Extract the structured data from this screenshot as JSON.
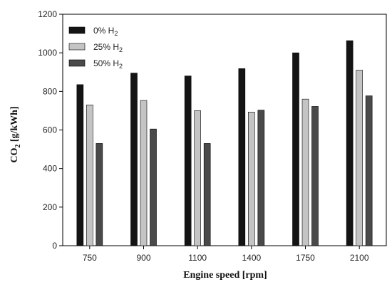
{
  "chart_data": {
    "type": "bar",
    "xlabel": "Engine speed [rpm]",
    "ylabel_main": "CO",
    "ylabel_sub": "2",
    "ylabel_unit": " [g/kWh]",
    "categories": [
      "750",
      "900",
      "1100",
      "1400",
      "1750",
      "2100"
    ],
    "ylim": [
      0,
      1200
    ],
    "yticks": [
      0,
      200,
      400,
      600,
      800,
      1000,
      1200
    ],
    "grid": false,
    "legend_position": "top-left",
    "series": [
      {
        "name_main": "0% H",
        "name_sub": "2",
        "color": "#141414",
        "values": [
          835,
          895,
          880,
          918,
          1000,
          1063
        ]
      },
      {
        "name_main": "25% H",
        "name_sub": "2",
        "color": "#c4c4c4",
        "values": [
          730,
          753,
          700,
          693,
          760,
          910
        ]
      },
      {
        "name_main": "50% H",
        "name_sub": "2",
        "color": "#4a4a4a",
        "values": [
          530,
          605,
          530,
          703,
          722,
          777
        ]
      }
    ]
  }
}
